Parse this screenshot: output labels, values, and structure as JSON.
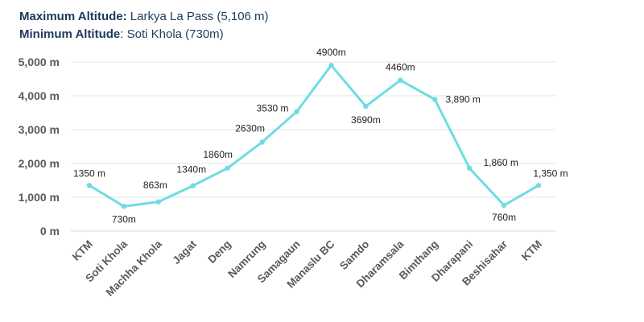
{
  "header": {
    "max_label": "Maximum Altitude:",
    "max_value": " Larkya La Pass (5,106 m)",
    "min_label": "Minimum Altitude",
    "min_value": ": Soti Khola (730m)"
  },
  "colors": {
    "line": "#6fdce3",
    "grid": "#e6e6e6",
    "axis": "#d9d9d9",
    "header_text": "#1e3a5c"
  },
  "chart_data": {
    "type": "line",
    "title": "",
    "xlabel": "",
    "ylabel": "",
    "ylim": [
      0,
      5000
    ],
    "yticks": [
      0,
      1000,
      2000,
      3000,
      4000,
      5000
    ],
    "ytick_labels": [
      "0 m",
      "1,000 m",
      "2,000 m",
      "3,000 m",
      "4,000 m",
      "5,000 m"
    ],
    "grid": true,
    "legend": "none",
    "categories": [
      "KTM",
      "Soti Khola",
      "Machha Khola",
      "Jagat",
      "Deng",
      "Namrung",
      "Samagaun",
      "Manaslu BC",
      "Samdo",
      "Dharamsala",
      "Bimthang",
      "Dharapani",
      "Beshisahar",
      "KTM"
    ],
    "series": [
      {
        "values": [
          1350,
          730,
          863,
          1340,
          1860,
          2630,
          3530,
          4900,
          3690,
          4460,
          3890,
          1860,
          760,
          1350
        ],
        "data_labels": [
          "1350 m",
          "730m",
          "863m",
          "1340m",
          "1860m",
          "2630m",
          "3530 m",
          "4900m",
          "3690m",
          "4460m",
          "3,890 m",
          "1,860 m",
          "760m",
          "1,350 m"
        ]
      }
    ]
  }
}
